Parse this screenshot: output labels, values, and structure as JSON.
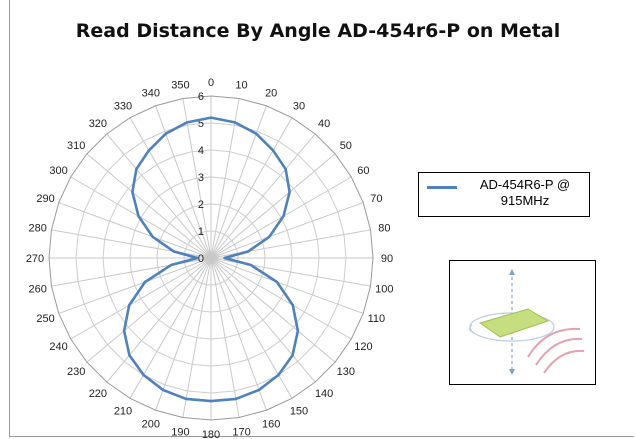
{
  "chart_data": {
    "type": "radar",
    "title": "Read Distance By Angle AD-454r6-P on Metal",
    "angles": [
      0,
      10,
      20,
      30,
      40,
      50,
      60,
      70,
      80,
      90,
      100,
      110,
      120,
      130,
      140,
      150,
      160,
      170,
      180,
      190,
      200,
      210,
      220,
      230,
      240,
      250,
      260,
      270,
      280,
      290,
      300,
      310,
      320,
      330,
      340,
      350
    ],
    "radial_ticks": [
      0,
      1,
      2,
      3,
      4,
      5,
      6
    ],
    "rlim": [
      0,
      6
    ],
    "series": [
      {
        "name": "AD-454R6-P @ 915MHz",
        "color": "#4f81bd",
        "values": [
          5.2,
          5.1,
          4.9,
          4.6,
          4.3,
          3.8,
          3.1,
          2.3,
          1.4,
          0.5,
          1.5,
          2.6,
          3.5,
          4.2,
          4.7,
          5.0,
          5.2,
          5.3,
          5.3,
          5.3,
          5.2,
          5.0,
          4.7,
          4.2,
          3.5,
          2.6,
          1.5,
          0.5,
          1.4,
          2.3,
          3.1,
          3.8,
          4.3,
          4.6,
          4.9,
          5.1
        ]
      }
    ],
    "grid": true,
    "legend_position": "right"
  },
  "legend": {
    "line1": "AD-454R6-P @",
    "line2": "915MHz"
  },
  "orientation_diagram": {
    "icon": "tag-orientation-icon",
    "tag_color": "#c6de7e",
    "wave_color": "#e7a0b0",
    "axis_color": "#7ba3cc"
  }
}
